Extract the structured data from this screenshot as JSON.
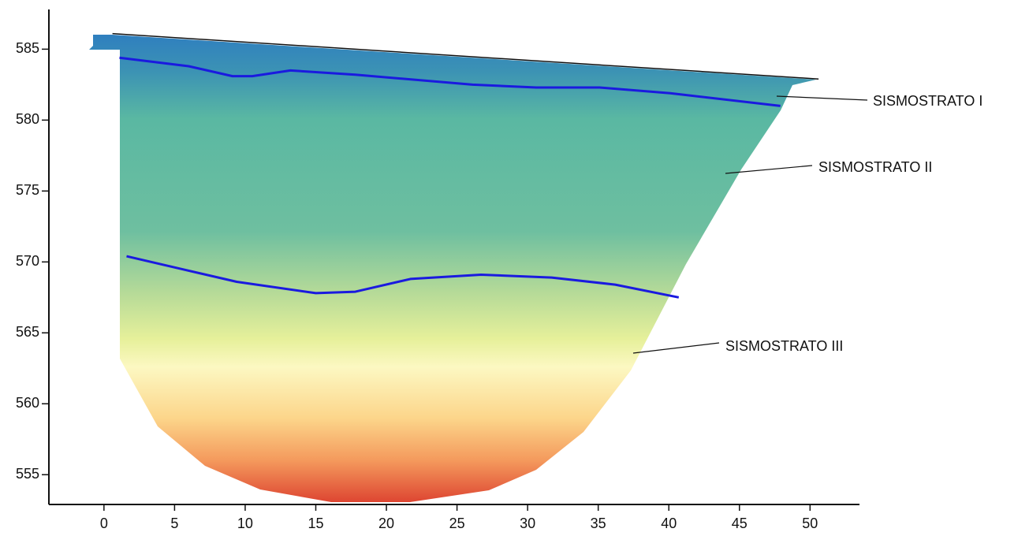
{
  "chart_data": {
    "type": "section",
    "xlim": [
      -3.9,
      53.5
    ],
    "ylim": [
      552.9,
      587.8
    ],
    "xticks": [
      0,
      5,
      10,
      15,
      20,
      25,
      30,
      35,
      40,
      45,
      50
    ],
    "yticks": [
      555,
      560,
      565,
      570,
      575,
      580,
      585
    ],
    "series": [
      {
        "color": "#111111",
        "x": [
          0.6,
          50.6
        ],
        "values": [
          586.1,
          582.9
        ]
      },
      {
        "color": "#1a1adf",
        "x": [
          1.1,
          6.0,
          9.1,
          10.5,
          13.2,
          17.8,
          26.1,
          30.6,
          35.1,
          40.1,
          47.9
        ],
        "values": [
          584.4,
          583.8,
          583.1,
          583.1,
          583.5,
          583.2,
          582.5,
          582.3,
          582.3,
          581.9,
          581.0
        ]
      },
      {
        "color": "#1a1adf",
        "x": [
          1.6,
          5.5,
          9.4,
          15.0,
          17.8,
          21.7,
          26.7,
          31.7,
          36.2,
          40.7
        ],
        "values": [
          570.4,
          569.5,
          568.6,
          567.8,
          567.9,
          568.8,
          569.1,
          568.9,
          568.4,
          567.5
        ]
      }
    ],
    "annotations": [
      "SISMOSTRATO I",
      "SISMOSTRATO II",
      "SISMOSTRATO III"
    ]
  }
}
